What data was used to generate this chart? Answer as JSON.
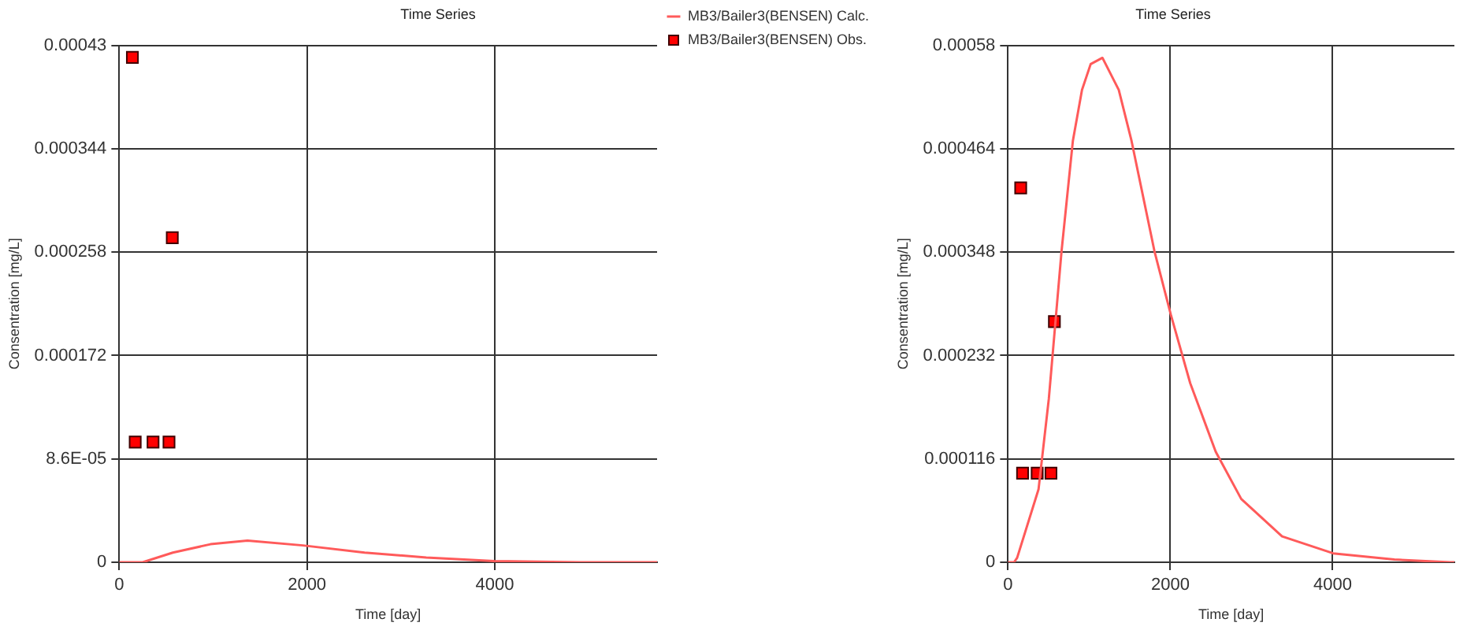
{
  "chart_data": [
    {
      "type": "line",
      "title": "Time Series",
      "xlabel": "Time [day]",
      "ylabel": "Consentration [mg/L]",
      "xlim": [
        0,
        5730
      ],
      "xticks": [
        0,
        2000,
        4000
      ],
      "ylim": [
        0,
        0.00043
      ],
      "yticks": [
        0,
        {
          "value": 8.6e-05,
          "label": "8.6E-05"
        },
        0.000172,
        0.000258,
        0.000344,
        0.00043
      ],
      "grid": true,
      "legend": "top right",
      "series": [
        {
          "name": "MB3/Bailer3(BENSEN) Calc.",
          "type": "line",
          "marker": "none",
          "color": "#ff5a5a",
          "x": [
            0,
            250,
            571,
            972,
            1366,
            1957,
            2614,
            3271,
            3994,
            4913,
            5730
          ],
          "values": [
            0,
            0,
            8e-06,
            1.5e-05,
            1.8e-05,
            1.4e-05,
            8e-06,
            4e-06,
            1e-06,
            0,
            0
          ]
        },
        {
          "name": "MB3/Bailer3(BENSEN) Obs.",
          "type": "scatter",
          "marker": "square",
          "color": "#ff0000",
          "x": [
            140,
            170,
            360,
            530,
            565
          ],
          "values": [
            0.00042,
            0.0001,
            0.0001,
            0.0001,
            0.00027
          ]
        }
      ]
    },
    {
      "type": "line",
      "title": "Time Series",
      "xlabel": "Time [day]",
      "ylabel": "Consentration [mg/L]",
      "xlim": [
        0,
        5500
      ],
      "xticks": [
        0,
        2000,
        4000
      ],
      "ylim": [
        0,
        0.00058
      ],
      "yticks": [
        0,
        0.000116,
        0.000232,
        0.000348,
        0.000464,
        0.00058
      ],
      "grid": true,
      "series": [
        {
          "type": "line",
          "marker": "none",
          "color": "#ff5a5a",
          "x": [
            0,
            75,
            113,
            377,
            503,
            660,
            800,
            912,
            1019,
            1164,
            1365,
            1522,
            1805,
            2006,
            2245,
            2560,
            2874,
            3377,
            4006,
            4760,
            5450,
            5500
          ],
          "values": [
            0,
            0,
            5e-06,
            8.2e-05,
            0.000183,
            0.000349,
            0.000473,
            0.00053,
            0.000559,
            0.000566,
            0.00053,
            0.000473,
            0.000349,
            0.000278,
            0.000201,
            0.000124,
            7.1e-05,
            2.9e-05,
            1e-05,
            3e-06,
            0,
            0
          ]
        },
        {
          "type": "scatter",
          "marker": "square",
          "color": "#ff0000",
          "x": [
            157,
            180,
            360,
            530,
            572
          ],
          "values": [
            0.00042,
            0.0001,
            0.0001,
            0.0001,
            0.00027
          ]
        }
      ]
    }
  ]
}
